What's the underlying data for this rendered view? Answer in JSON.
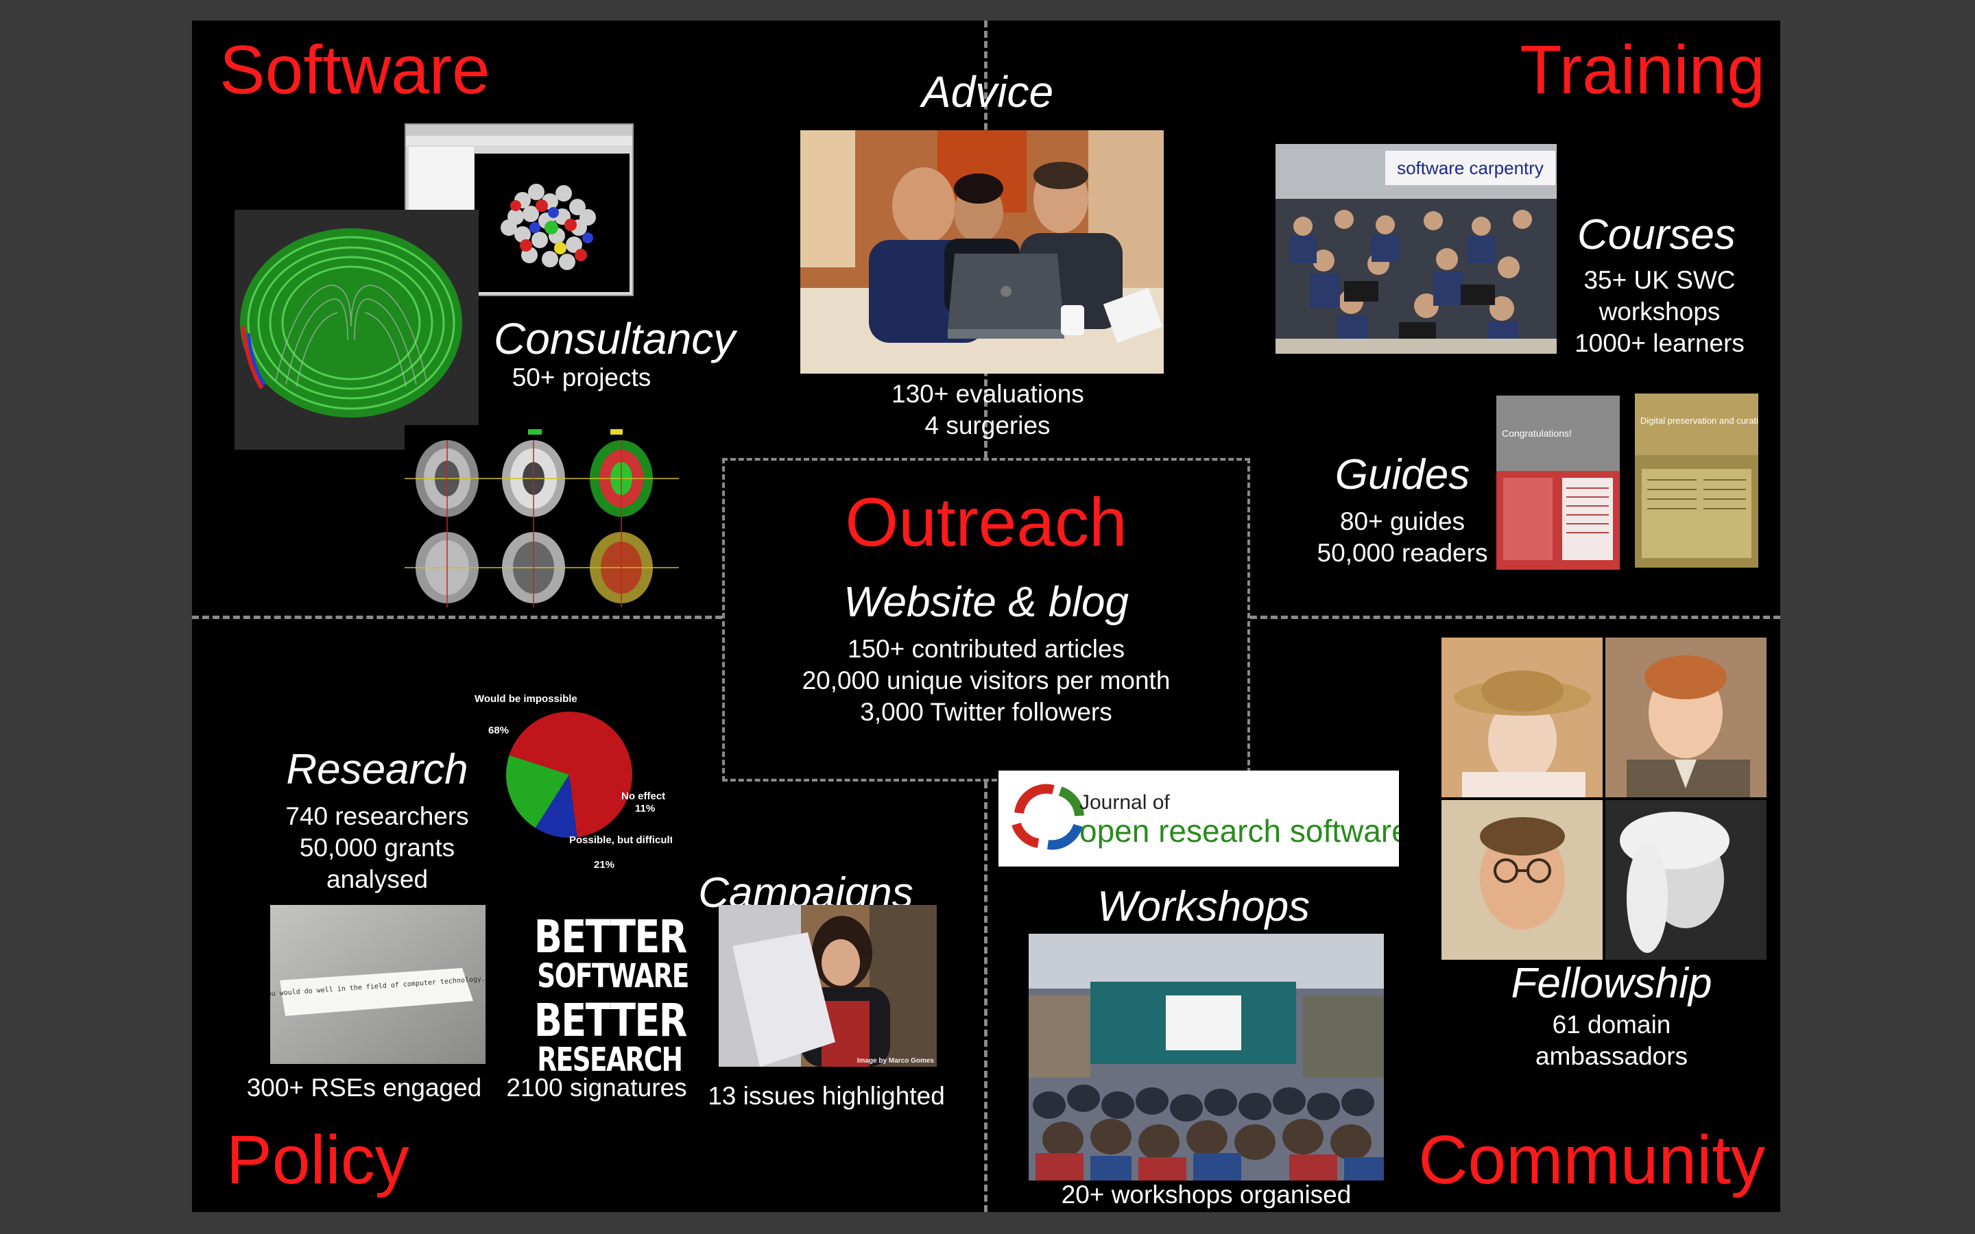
{
  "quadrants": {
    "software": "Software",
    "training": "Training",
    "policy": "Policy",
    "community": "Community"
  },
  "center": {
    "title": "Outreach",
    "subtitle": "Website & blog",
    "stats": [
      "150+ contributed articles",
      "20,000 unique visitors per month",
      "3,000 Twitter followers"
    ]
  },
  "advice": {
    "title": "Advice",
    "stats": [
      "130+ evaluations",
      "4 surgeries"
    ]
  },
  "consultancy": {
    "title": "Consultancy",
    "stats": [
      "50+ projects"
    ]
  },
  "courses": {
    "title": "Courses",
    "banner": "software carpentry",
    "stats": [
      "35+ UK SWC",
      "workshops",
      "1000+ learners"
    ]
  },
  "guides": {
    "title": "Guides",
    "stats": [
      "80+ guides",
      "50,000 readers"
    ],
    "doc1_heading": "Congratulations!",
    "doc2_heading": "Digital preservation and curation"
  },
  "research": {
    "title": "Research",
    "stats": [
      "740 researchers",
      "50,000 grants",
      "analysed"
    ],
    "pie": {
      "type": "pie",
      "slices": [
        {
          "label": "Would be impossible",
          "value": 68,
          "pct": "68%",
          "color": "#c0151a"
        },
        {
          "label": "No effect",
          "value": 11,
          "pct": "11%",
          "color": "#1a2faa"
        },
        {
          "label": "Possible, but difficult",
          "value": 21,
          "pct": "21%",
          "color": "#22aa22"
        }
      ]
    }
  },
  "policy_items": {
    "rse_caption": "300+ RSEs engaged",
    "fortune_text": "You would do well in the field of computer technology.",
    "bsbr_lines": [
      "BETTER",
      "SOFTWARE",
      "BETTER",
      "RESEARCH"
    ],
    "signatures_caption": "2100 signatures"
  },
  "campaigns": {
    "title": "Campaigns",
    "caption": "13 issues highlighted",
    "photo_credit": "Image by Marco Gomes"
  },
  "workshops": {
    "title": "Workshops",
    "journal_line1": "Journal of",
    "journal_line2": "open research software",
    "caption": "20+ workshops organised"
  },
  "fellowship": {
    "title": "Fellowship",
    "stats": [
      "61 domain",
      "ambassadors"
    ]
  },
  "colors": {
    "accent": "#ff1a1a",
    "background": "#000000",
    "text": "#ffffff",
    "divider": "#8a8a8a"
  }
}
